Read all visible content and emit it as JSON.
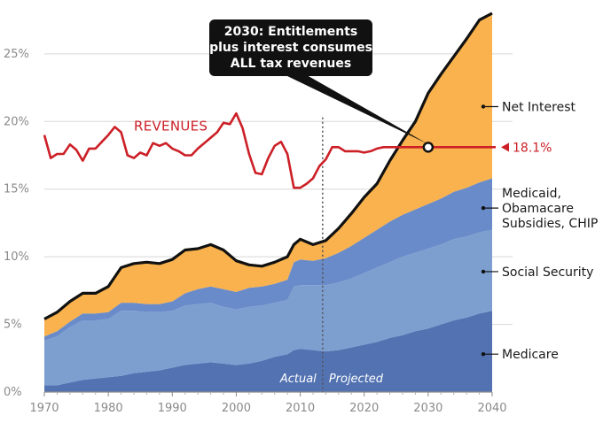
{
  "chart_data": {
    "type": "area",
    "title": "",
    "xlabel": "",
    "ylabel": "",
    "xlim": [
      1970,
      2040
    ],
    "ylim": [
      0,
      28
    ],
    "x_ticks": [
      "1970",
      "1980",
      "1990",
      "2000",
      "2010",
      "2020",
      "2030",
      "2040"
    ],
    "y_ticks": [
      "0%",
      "5%",
      "10%",
      "15%",
      "20%",
      "25%"
    ],
    "grid": true,
    "projection_divider_year": 2013.5,
    "period_labels": {
      "actual": "Actual",
      "projected": "Projected"
    },
    "years": [
      1970,
      1972,
      1974,
      1976,
      1978,
      1980,
      1982,
      1984,
      1986,
      1988,
      1990,
      1992,
      1994,
      1996,
      1998,
      2000,
      2002,
      2004,
      2006,
      2008,
      2009,
      2010,
      2012,
      2014,
      2016,
      2018,
      2020,
      2022,
      2024,
      2026,
      2028,
      2030,
      2032,
      2034,
      2036,
      2038,
      2040
    ],
    "series": [
      {
        "name": "Medicare",
        "color": "#5272b2",
        "values": [
          0.5,
          0.5,
          0.7,
          0.9,
          1.0,
          1.1,
          1.2,
          1.4,
          1.5,
          1.6,
          1.8,
          2.0,
          2.1,
          2.2,
          2.1,
          2.0,
          2.1,
          2.3,
          2.6,
          2.8,
          3.1,
          3.2,
          3.1,
          3.0,
          3.1,
          3.3,
          3.5,
          3.7,
          4.0,
          4.2,
          4.5,
          4.7,
          5.0,
          5.3,
          5.5,
          5.8,
          6.0
        ]
      },
      {
        "name": "Social Security",
        "color": "#7d9fd0",
        "values": [
          3.3,
          3.6,
          4.1,
          4.4,
          4.3,
          4.3,
          4.8,
          4.6,
          4.4,
          4.3,
          4.2,
          4.4,
          4.4,
          4.4,
          4.2,
          4.1,
          4.2,
          4.1,
          4.0,
          4.0,
          4.7,
          4.7,
          4.8,
          4.9,
          5.0,
          5.1,
          5.3,
          5.5,
          5.6,
          5.8,
          5.8,
          5.9,
          5.9,
          6.0,
          6.0,
          6.0,
          6.0
        ]
      },
      {
        "name": "Medicaid, Obamacare Subsidies, CHIP",
        "color": "#6a8bc9",
        "values": [
          0.3,
          0.4,
          0.4,
          0.5,
          0.5,
          0.5,
          0.6,
          0.6,
          0.6,
          0.6,
          0.7,
          0.9,
          1.1,
          1.2,
          1.3,
          1.3,
          1.4,
          1.4,
          1.4,
          1.5,
          1.8,
          1.9,
          1.8,
          2.0,
          2.2,
          2.4,
          2.6,
          2.8,
          3.0,
          3.1,
          3.2,
          3.3,
          3.4,
          3.5,
          3.6,
          3.7,
          3.8
        ]
      },
      {
        "name": "Net Interest",
        "color": "#f9b24d",
        "values": [
          1.3,
          1.4,
          1.5,
          1.5,
          1.5,
          1.9,
          2.6,
          2.9,
          3.1,
          3.0,
          3.1,
          3.2,
          3.0,
          3.1,
          2.9,
          2.3,
          1.7,
          1.5,
          1.6,
          1.7,
          1.3,
          1.5,
          1.2,
          1.3,
          1.8,
          2.4,
          3.0,
          3.4,
          4.5,
          5.5,
          6.5,
          8.2,
          9.2,
          10.0,
          11.0,
          12.0,
          12.2
        ]
      }
    ],
    "revenues": {
      "name": "REVENUES",
      "color": "#cc1f26",
      "x": [
        1970,
        1971,
        1972,
        1973,
        1974,
        1975,
        1976,
        1977,
        1978,
        1979,
        1980,
        1981,
        1982,
        1983,
        1984,
        1985,
        1986,
        1987,
        1988,
        1989,
        1990,
        1991,
        1992,
        1993,
        1994,
        1995,
        1996,
        1997,
        1998,
        1999,
        2000,
        2001,
        2002,
        2003,
        2004,
        2005,
        2006,
        2007,
        2008,
        2009,
        2010,
        2011,
        2012,
        2013,
        2014,
        2015,
        2016,
        2017,
        2018,
        2019,
        2020,
        2021,
        2022,
        2023,
        2024,
        2030,
        2040
      ],
      "values": [
        19.0,
        17.3,
        17.6,
        17.6,
        18.3,
        17.9,
        17.1,
        18.0,
        18.0,
        18.5,
        19.0,
        19.6,
        19.2,
        17.5,
        17.3,
        17.7,
        17.5,
        18.4,
        18.2,
        18.4,
        18.0,
        17.8,
        17.5,
        17.5,
        18.0,
        18.4,
        18.8,
        19.2,
        19.9,
        19.8,
        20.6,
        19.5,
        17.6,
        16.2,
        16.1,
        17.3,
        18.2,
        18.5,
        17.6,
        15.1,
        15.1,
        15.4,
        15.8,
        16.7,
        17.2,
        18.1,
        18.1,
        17.8,
        17.8,
        17.8,
        17.7,
        17.8,
        18.0,
        18.1,
        18.1,
        18.1,
        18.1
      ],
      "end_value_label": "18.1%"
    },
    "callout": {
      "lines": [
        "2030: Entitlements",
        "plus interest consumes",
        "ALL tax revenues"
      ],
      "point": [
        2030,
        18.1
      ]
    },
    "right_labels": [
      {
        "text_lines": [
          "Net Interest"
        ],
        "y": 21.1
      },
      {
        "text_lines": [
          "Medicaid,",
          "Obamacare",
          "Subsidies, CHIP"
        ],
        "y": 13.6
      },
      {
        "text_lines": [
          "Social Security"
        ],
        "y": 8.9
      },
      {
        "text_lines": [
          "Medicare"
        ],
        "y": 2.8
      }
    ]
  }
}
